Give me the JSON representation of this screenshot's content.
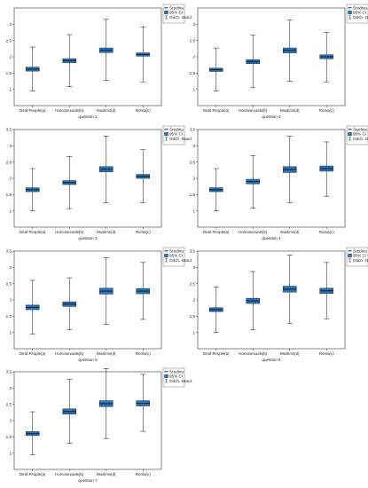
{
  "legend": {
    "mean_label": "Średnia",
    "ci_label": "95% CI",
    "sd_label": "Odch. stand."
  },
  "colors": {
    "box_fill": "#2e72b8",
    "box_stroke": "#1a3d5e",
    "mean_line": "#0b2740",
    "whisker": "#333333",
    "axis": "#333333"
  },
  "chart_data": [
    {
      "type": "box",
      "xlabel": "question 1",
      "ylim": [
        0.5,
        3.5
      ],
      "yticks": [
        1,
        1.5,
        2,
        2.5,
        3
      ],
      "categories": [
        "Deaf People(a)",
        "Homosexuals(b)",
        "Muslims(d)",
        "Roma(c)"
      ],
      "mean": [
        1.62,
        1.88,
        2.2,
        2.07
      ],
      "ci_low": [
        1.56,
        1.82,
        2.13,
        2.02
      ],
      "ci_high": [
        1.68,
        1.94,
        2.27,
        2.12
      ],
      "sd_low": [
        0.95,
        1.08,
        1.27,
        1.23
      ],
      "sd_high": [
        2.3,
        2.68,
        3.15,
        2.92
      ]
    },
    {
      "type": "box",
      "xlabel": "question 2",
      "ylim": [
        0.5,
        3.5
      ],
      "yticks": [
        1,
        1.5,
        2,
        2.5,
        3
      ],
      "categories": [
        "Deaf People(a)",
        "Homosexuals(b)",
        "Muslims(d)",
        "Roma(c)"
      ],
      "mean": [
        1.6,
        1.85,
        2.2,
        2.0
      ],
      "ci_low": [
        1.55,
        1.79,
        2.12,
        1.94
      ],
      "ci_high": [
        1.65,
        1.91,
        2.27,
        2.06
      ],
      "sd_low": [
        0.95,
        1.05,
        1.25,
        1.23
      ],
      "sd_high": [
        2.27,
        2.67,
        3.13,
        2.75
      ]
    },
    {
      "type": "box",
      "xlabel": "question 3",
      "ylim": [
        0.5,
        3.5
      ],
      "yticks": [
        1,
        1.5,
        2,
        2.5,
        3,
        3.5
      ],
      "categories": [
        "Deaf People(a)",
        "Homosexuals(b)",
        "Muslims(d)",
        "Roma(c)"
      ],
      "mean": [
        1.65,
        1.87,
        2.28,
        2.06
      ],
      "ci_low": [
        1.59,
        1.81,
        2.2,
        2.0
      ],
      "ci_high": [
        1.71,
        1.93,
        2.36,
        2.12
      ],
      "sd_low": [
        1.0,
        1.07,
        1.25,
        1.25
      ],
      "sd_high": [
        2.3,
        2.67,
        3.3,
        2.88
      ]
    },
    {
      "type": "box",
      "xlabel": "question 4",
      "ylim": [
        0.5,
        3.5
      ],
      "yticks": [
        1,
        1.5,
        2,
        2.5,
        3,
        3.5
      ],
      "categories": [
        "Deaf People(a)",
        "Homosexuals(b)",
        "Muslims(d)",
        "Roma(c)"
      ],
      "mean": [
        1.65,
        1.9,
        2.27,
        2.3
      ],
      "ci_low": [
        1.59,
        1.83,
        2.18,
        2.22
      ],
      "ci_high": [
        1.71,
        1.97,
        2.36,
        2.38
      ],
      "sd_low": [
        1.0,
        1.08,
        1.25,
        1.45
      ],
      "sd_high": [
        2.3,
        2.7,
        3.3,
        3.12
      ]
    },
    {
      "type": "box",
      "xlabel": "question 5",
      "ylim": [
        0.5,
        3.5
      ],
      "yticks": [
        1,
        1.5,
        2,
        2.5,
        3,
        3.5
      ],
      "categories": [
        "Deaf People(a)",
        "Homosexuals(b)",
        "Muslims(d)",
        "Roma(c)"
      ],
      "mean": [
        1.77,
        1.87,
        2.27,
        2.27
      ],
      "ci_low": [
        1.7,
        1.8,
        2.18,
        2.19
      ],
      "ci_high": [
        1.84,
        1.94,
        2.36,
        2.35
      ],
      "sd_low": [
        0.95,
        1.08,
        1.25,
        1.4
      ],
      "sd_high": [
        2.6,
        2.68,
        3.3,
        3.15
      ]
    },
    {
      "type": "box",
      "xlabel": "question 6",
      "ylim": [
        0.5,
        3.5
      ],
      "yticks": [
        1,
        1.5,
        2,
        2.5,
        3,
        3.5
      ],
      "categories": [
        "Deaf People(a)",
        "Homosexuals(b)",
        "Muslims(d)",
        "Roma(c)"
      ],
      "mean": [
        1.7,
        1.97,
        2.33,
        2.28
      ],
      "ci_low": [
        1.64,
        1.89,
        2.24,
        2.2
      ],
      "ci_high": [
        1.76,
        2.05,
        2.42,
        2.36
      ],
      "sd_low": [
        1.0,
        1.08,
        1.27,
        1.42
      ],
      "sd_high": [
        2.4,
        2.87,
        3.38,
        3.15
      ]
    },
    {
      "type": "box",
      "xlabel": "question 7",
      "ylim": [
        0.5,
        3.5
      ],
      "yticks": [
        1,
        1.5,
        2,
        2.5,
        3,
        3.5
      ],
      "categories": [
        "Deaf People(a)",
        "Homosexuals(b)",
        "Muslims(d)",
        "Roma(c)"
      ],
      "mean": [
        1.6,
        2.28,
        2.52,
        2.53
      ],
      "ci_low": [
        1.54,
        2.2,
        2.43,
        2.45
      ],
      "ci_high": [
        1.66,
        2.36,
        2.61,
        2.61
      ],
      "sd_low": [
        0.95,
        1.3,
        1.45,
        1.67
      ],
      "sd_high": [
        2.27,
        3.27,
        3.6,
        3.42
      ]
    }
  ]
}
